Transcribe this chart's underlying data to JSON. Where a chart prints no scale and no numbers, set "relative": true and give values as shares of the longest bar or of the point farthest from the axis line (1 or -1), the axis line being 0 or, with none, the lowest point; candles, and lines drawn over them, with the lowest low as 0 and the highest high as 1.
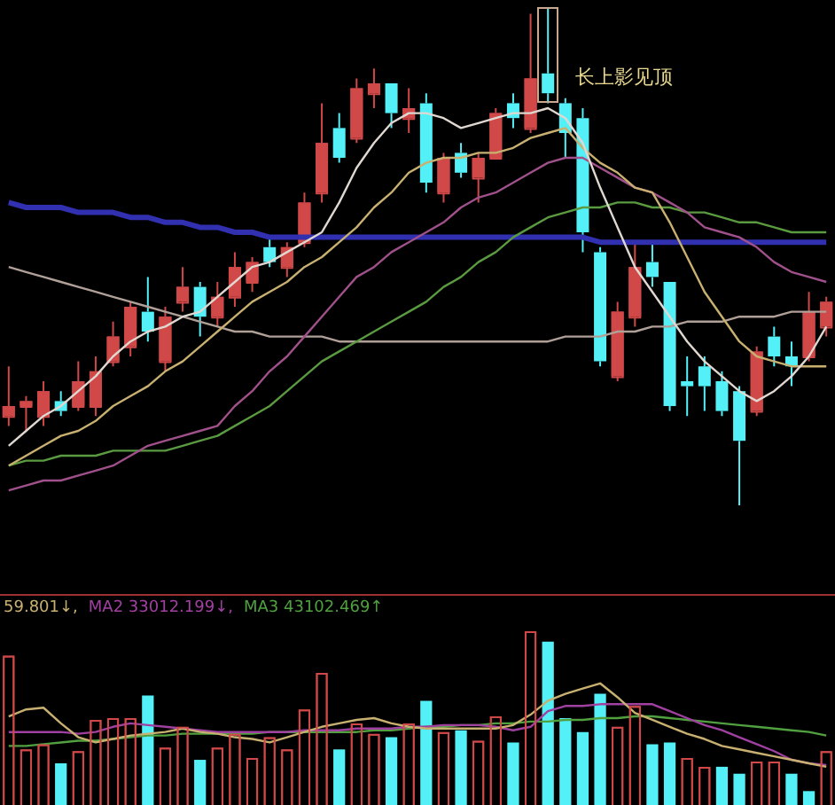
{
  "chart_data": [
    {
      "type": "candlestick",
      "relative": true,
      "marker": "none",
      "categories": [
        null,
        null,
        null,
        null,
        null,
        null,
        null,
        null,
        null,
        null,
        null,
        null,
        null,
        null,
        null,
        null,
        null,
        null,
        null,
        null,
        null,
        null,
        null,
        null,
        null,
        null,
        null,
        null,
        null,
        null,
        null,
        null,
        null,
        null,
        null,
        null,
        null,
        null,
        null,
        null,
        null,
        null,
        null,
        null,
        null,
        null,
        null,
        null
      ],
      "ohlc": [
        [
          0.18,
          0.28,
          0.16,
          0.2
        ],
        [
          0.2,
          0.22,
          0.15,
          0.21
        ],
        [
          0.18,
          0.25,
          0.16,
          0.23
        ],
        [
          0.21,
          0.23,
          0.18,
          0.19
        ],
        [
          0.2,
          0.29,
          0.19,
          0.25
        ],
        [
          0.2,
          0.3,
          0.18,
          0.27
        ],
        [
          0.29,
          0.37,
          0.28,
          0.34
        ],
        [
          0.32,
          0.41,
          0.3,
          0.4
        ],
        [
          0.39,
          0.46,
          0.33,
          0.35
        ],
        [
          0.29,
          0.4,
          0.27,
          0.38
        ],
        [
          0.41,
          0.48,
          0.39,
          0.44
        ],
        [
          0.44,
          0.45,
          0.34,
          0.38
        ],
        [
          0.38,
          0.45,
          0.36,
          0.42
        ],
        [
          0.42,
          0.51,
          0.4,
          0.48
        ],
        [
          0.45,
          0.5,
          0.43,
          0.49
        ],
        [
          0.52,
          0.54,
          0.48,
          0.49
        ],
        [
          0.48,
          0.53,
          0.46,
          0.52
        ],
        [
          0.53,
          0.63,
          0.52,
          0.61
        ],
        [
          0.63,
          0.81,
          0.61,
          0.73
        ],
        [
          0.76,
          0.79,
          0.69,
          0.7
        ],
        [
          0.74,
          0.86,
          0.73,
          0.84
        ],
        [
          0.83,
          0.88,
          0.8,
          0.85
        ],
        [
          0.85,
          0.85,
          0.76,
          0.79
        ],
        [
          0.78,
          0.84,
          0.75,
          0.8
        ],
        [
          0.81,
          0.83,
          0.63,
          0.65
        ],
        [
          0.63,
          0.71,
          0.61,
          0.7
        ],
        [
          0.71,
          0.73,
          0.66,
          0.67
        ],
        [
          0.66,
          0.71,
          0.61,
          0.7
        ],
        [
          0.7,
          0.8,
          0.7,
          0.79
        ],
        [
          0.81,
          0.83,
          0.76,
          0.78
        ],
        [
          0.76,
          0.99,
          0.75,
          0.86
        ],
        [
          0.87,
          1,
          0.81,
          0.83
        ],
        [
          0.81,
          0.82,
          0.7,
          0.75
        ],
        [
          0.78,
          0.8,
          0.51,
          0.55
        ],
        [
          0.51,
          0.52,
          0.28,
          0.29
        ],
        [
          0.26,
          0.41,
          0.25,
          0.39
        ],
        [
          0.38,
          0.53,
          0.36,
          0.48
        ],
        [
          0.49,
          0.53,
          0.44,
          0.46
        ],
        [
          0.45,
          0.45,
          0.19,
          0.2
        ],
        [
          0.25,
          0.3,
          0.18,
          0.24
        ],
        [
          0.28,
          0.3,
          0.19,
          0.24
        ],
        [
          0.25,
          0.27,
          0.18,
          0.19
        ],
        [
          0.23,
          0.24,
          0,
          0.13
        ],
        [
          0.19,
          0.32,
          0.18,
          0.31
        ],
        [
          0.34,
          0.36,
          0.28,
          0.3
        ],
        [
          0.3,
          0.33,
          0.24,
          0.28
        ],
        [
          0.3,
          0.43,
          0.29,
          0.39
        ],
        [
          0.36,
          0.42,
          0.34,
          0.41
        ]
      ],
      "colors": [
        "#d04848",
        "#d04848",
        "#d04848",
        "#54f0f8",
        "#d04848",
        "#d04848",
        "#d04848",
        "#d04848",
        "#54f0f8",
        "#d04848",
        "#d04848",
        "#54f0f8",
        "#d04848",
        "#d04848",
        "#d04848",
        "#54f0f8",
        "#d04848",
        "#d04848",
        "#d04848",
        "#54f0f8",
        "#d04848",
        "#d04848",
        "#54f0f8",
        "#d04848",
        "#54f0f8",
        "#d04848",
        "#54f0f8",
        "#d04848",
        "#d04848",
        "#54f0f8",
        "#d04848",
        "#54f0f8",
        "#54f0f8",
        "#54f0f8",
        "#54f0f8",
        "#d04848",
        "#d04848",
        "#54f0f8",
        "#54f0f8",
        "#54f0f8",
        "#54f0f8",
        "#54f0f8",
        "#54f0f8",
        "#d04848",
        "#54f0f8",
        "#54f0f8",
        "#d04848",
        "#d04848"
      ],
      "series": [
        {
          "type": "line",
          "color": "#e0d8d0",
          "values": [
            0.12,
            0.15,
            0.18,
            0.2,
            0.23,
            0.26,
            0.3,
            0.33,
            0.35,
            0.36,
            0.38,
            0.39,
            0.42,
            0.45,
            0.48,
            0.49,
            0.51,
            0.53,
            0.55,
            0.61,
            0.68,
            0.73,
            0.77,
            0.79,
            0.79,
            0.78,
            0.76,
            0.77,
            0.78,
            0.79,
            0.79,
            0.8,
            0.78,
            0.73,
            0.64,
            0.56,
            0.48,
            0.43,
            0.38,
            0.33,
            0.29,
            0.26,
            0.23,
            0.21,
            0.23,
            0.26,
            0.3,
            0.36
          ]
        },
        {
          "type": "line",
          "color": "#c8b070",
          "values": [
            0.08,
            0.1,
            0.12,
            0.14,
            0.15,
            0.17,
            0.2,
            0.22,
            0.24,
            0.27,
            0.29,
            0.32,
            0.35,
            0.38,
            0.41,
            0.43,
            0.45,
            0.48,
            0.5,
            0.53,
            0.56,
            0.6,
            0.63,
            0.67,
            0.69,
            0.7,
            0.7,
            0.71,
            0.71,
            0.72,
            0.74,
            0.75,
            0.76,
            0.72,
            0.69,
            0.67,
            0.64,
            0.63,
            0.57,
            0.5,
            0.43,
            0.38,
            0.33,
            0.3,
            0.29,
            0.28,
            0.28,
            0.28
          ]
        },
        {
          "type": "line",
          "color": "#a0508a",
          "values": [
            0.03,
            0.04,
            0.05,
            0.05,
            0.06,
            0.07,
            0.08,
            0.1,
            0.12,
            0.13,
            0.14,
            0.15,
            0.16,
            0.2,
            0.23,
            0.27,
            0.3,
            0.34,
            0.38,
            0.42,
            0.46,
            0.48,
            0.51,
            0.53,
            0.55,
            0.57,
            0.6,
            0.62,
            0.63,
            0.65,
            0.67,
            0.69,
            0.7,
            0.7,
            0.68,
            0.66,
            0.64,
            0.63,
            0.61,
            0.59,
            0.56,
            0.55,
            0.54,
            0.52,
            0.49,
            0.47,
            0.46,
            0.45
          ]
        },
        {
          "type": "line",
          "color": "#5a9a40",
          "values": [
            0.08,
            0.09,
            0.09,
            0.1,
            0.1,
            0.1,
            0.11,
            0.11,
            0.11,
            0.11,
            0.12,
            0.13,
            0.14,
            0.16,
            0.18,
            0.2,
            0.23,
            0.26,
            0.29,
            0.31,
            0.33,
            0.35,
            0.37,
            0.39,
            0.41,
            0.44,
            0.46,
            0.49,
            0.51,
            0.54,
            0.56,
            0.58,
            0.59,
            0.6,
            0.6,
            0.61,
            0.61,
            0.6,
            0.6,
            0.59,
            0.59,
            0.58,
            0.57,
            0.57,
            0.56,
            0.55,
            0.55,
            0.55
          ]
        },
        {
          "type": "line",
          "color": "#3030b0",
          "values": [
            0.61,
            0.6,
            0.6,
            0.6,
            0.59,
            0.59,
            0.59,
            0.58,
            0.58,
            0.57,
            0.57,
            0.56,
            0.56,
            0.55,
            0.55,
            0.54,
            0.54,
            0.54,
            0.54,
            0.54,
            0.54,
            0.54,
            0.54,
            0.54,
            0.54,
            0.54,
            0.54,
            0.54,
            0.54,
            0.54,
            0.54,
            0.54,
            0.54,
            0.54,
            0.53,
            0.53,
            0.53,
            0.53,
            0.53,
            0.53,
            0.53,
            0.53,
            0.53,
            0.53,
            0.53,
            0.53,
            0.53,
            0.53
          ]
        },
        {
          "type": "line",
          "color": "#b0a098",
          "values": [
            0.48,
            0.47,
            0.46,
            0.45,
            0.44,
            0.43,
            0.42,
            0.41,
            0.4,
            0.39,
            0.38,
            0.37,
            0.36,
            0.35,
            0.35,
            0.34,
            0.34,
            0.34,
            0.34,
            0.33,
            0.33,
            0.33,
            0.33,
            0.33,
            0.33,
            0.33,
            0.33,
            0.33,
            0.33,
            0.33,
            0.33,
            0.33,
            0.34,
            0.34,
            0.34,
            0.35,
            0.35,
            0.36,
            0.36,
            0.37,
            0.37,
            0.37,
            0.38,
            0.38,
            0.38,
            0.39,
            0.39,
            0.39
          ]
        }
      ],
      "annotations": [
        "长上影见顶"
      ]
    },
    {
      "type": "bar",
      "relative": true,
      "marker": "none",
      "categories": [
        null,
        null,
        null,
        null,
        null,
        null,
        null,
        null,
        null,
        null,
        null,
        null,
        null,
        null,
        null,
        null,
        null,
        null,
        null,
        null,
        null,
        null,
        null,
        null,
        null,
        null,
        null,
        null,
        null,
        null,
        null,
        null,
        null,
        null,
        null,
        null,
        null,
        null,
        null,
        null,
        null,
        null,
        null,
        null,
        null,
        null,
        null,
        null
      ],
      "values": [
        0.86,
        0.32,
        0.35,
        0.24,
        0.31,
        0.49,
        0.5,
        0.5,
        0.63,
        0.33,
        0.45,
        0.26,
        0.33,
        0.41,
        0.27,
        0.39,
        0.32,
        0.55,
        0.76,
        0.32,
        0.47,
        0.41,
        0.39,
        0.47,
        0.6,
        0.42,
        0.43,
        0.37,
        0.51,
        0.36,
        1,
        0.94,
        0.5,
        0.42,
        0.64,
        0.45,
        0.57,
        0.35,
        0.36,
        0.27,
        0.22,
        0.22,
        0.18,
        0.25,
        0.25,
        0.18,
        0.08,
        0.31
      ],
      "colors": [
        "#d04848",
        "#d04848",
        "#d04848",
        "#54f0f8",
        "#d04848",
        "#d04848",
        "#d04848",
        "#d04848",
        "#54f0f8",
        "#d04848",
        "#d04848",
        "#54f0f8",
        "#d04848",
        "#d04848",
        "#d04848",
        "#d04848",
        "#d04848",
        "#d04848",
        "#d04848",
        "#54f0f8",
        "#d04848",
        "#d04848",
        "#54f0f8",
        "#d04848",
        "#54f0f8",
        "#d04848",
        "#54f0f8",
        "#d04848",
        "#d04848",
        "#54f0f8",
        "#d04848",
        "#54f0f8",
        "#54f0f8",
        "#54f0f8",
        "#54f0f8",
        "#d04848",
        "#d04848",
        "#54f0f8",
        "#54f0f8",
        "#d04848",
        "#d04848",
        "#54f0f8",
        "#54f0f8",
        "#d04848",
        "#d04848",
        "#54f0f8",
        "#54f0f8",
        "#d04848"
      ],
      "series": [
        {
          "type": "line",
          "color": "#c8b070",
          "values": [
            0.51,
            0.55,
            0.56,
            0.47,
            0.39,
            0.36,
            0.38,
            0.4,
            0.41,
            0.42,
            0.44,
            0.42,
            0.41,
            0.39,
            0.38,
            0.36,
            0.39,
            0.42,
            0.45,
            0.47,
            0.49,
            0.5,
            0.47,
            0.45,
            0.44,
            0.44,
            0.44,
            0.44,
            0.44,
            0.46,
            0.52,
            0.6,
            0.64,
            0.67,
            0.7,
            0.62,
            0.53,
            0.49,
            0.45,
            0.41,
            0.38,
            0.34,
            0.32,
            0.3,
            0.28,
            0.26,
            0.24,
            0.22
          ]
        },
        {
          "type": "line",
          "color": "#a040a0",
          "values": [
            0.42,
            0.42,
            0.42,
            0.42,
            0.41,
            0.42,
            0.45,
            0.47,
            0.46,
            0.45,
            0.44,
            0.43,
            0.42,
            0.42,
            0.42,
            0.42,
            0.42,
            0.43,
            0.43,
            0.43,
            0.44,
            0.44,
            0.44,
            0.45,
            0.45,
            0.46,
            0.46,
            0.46,
            0.45,
            0.43,
            0.45,
            0.54,
            0.57,
            0.57,
            0.58,
            0.58,
            0.58,
            0.58,
            0.54,
            0.5,
            0.46,
            0.43,
            0.39,
            0.35,
            0.31,
            0.26,
            0.24,
            0.23
          ]
        },
        {
          "type": "line",
          "color": "#50a040",
          "values": [
            0.34,
            0.34,
            0.35,
            0.36,
            0.37,
            0.37,
            0.38,
            0.39,
            0.4,
            0.4,
            0.41,
            0.41,
            0.41,
            0.41,
            0.41,
            0.42,
            0.42,
            0.42,
            0.42,
            0.42,
            0.42,
            0.43,
            0.43,
            0.44,
            0.45,
            0.45,
            0.46,
            0.46,
            0.47,
            0.47,
            0.48,
            0.48,
            0.49,
            0.49,
            0.5,
            0.5,
            0.51,
            0.51,
            0.5,
            0.49,
            0.48,
            0.47,
            0.46,
            0.45,
            0.44,
            0.43,
            0.42,
            0.4
          ]
        }
      ],
      "annotations": [
        "59.801↓,",
        "MA2 33012.199↓,",
        "MA3 43102.469↑"
      ]
    }
  ]
}
